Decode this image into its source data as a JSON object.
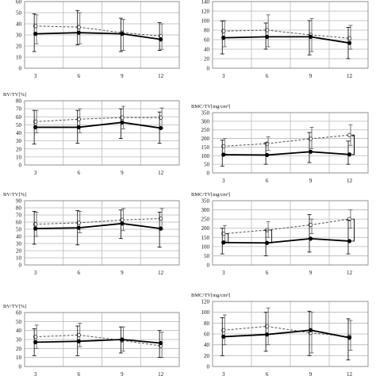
{
  "chart_data": [
    {
      "type": "line",
      "ylabel": "",
      "ylim": [
        0,
        60
      ],
      "yticks": [
        0,
        10,
        20,
        30,
        40,
        50,
        60
      ],
      "x": [
        3,
        6,
        9,
        12
      ],
      "series": [
        {
          "style": "dashed",
          "values": [
            38,
            37,
            32,
            29
          ],
          "err": [
            [
              22,
              48
            ],
            [
              22,
              50
            ],
            [
              16,
              44
            ],
            [
              17,
              40
            ]
          ]
        },
        {
          "style": "solid",
          "values": [
            31,
            32,
            31,
            26
          ],
          "err": [
            [
              15,
              49
            ],
            [
              21,
              52
            ],
            [
              15,
              45
            ],
            [
              16,
              41
            ]
          ]
        }
      ]
    },
    {
      "type": "line",
      "ylabel": "",
      "ylim": [
        0,
        140
      ],
      "yticks": [
        0,
        20,
        40,
        60,
        80,
        100,
        120,
        140
      ],
      "x": [
        3,
        6,
        9,
        12
      ],
      "series": [
        {
          "style": "dashed",
          "values": [
            78,
            80,
            70,
            63
          ],
          "err": [
            [
              45,
              100
            ],
            [
              45,
              112
            ],
            [
              35,
              104
            ],
            [
              40,
              90
            ]
          ]
        },
        {
          "style": "solid",
          "values": [
            64,
            66,
            66,
            53
          ],
          "err": [
            [
              30,
              99
            ],
            [
              40,
              95
            ],
            [
              28,
              100
            ],
            [
              20,
              86
            ]
          ]
        }
      ]
    },
    {
      "type": "line",
      "ylabel": "BV/TV[%]",
      "ylim": [
        0,
        80
      ],
      "yticks": [
        0,
        10,
        20,
        30,
        40,
        50,
        60,
        70,
        80
      ],
      "x": [
        3,
        6,
        9,
        12
      ],
      "series": [
        {
          "style": "dashed",
          "values": [
            54,
            57,
            59,
            59
          ],
          "err": [
            [
              40,
              68
            ],
            [
              40,
              70
            ],
            [
              45,
              73
            ],
            [
              46,
              71
            ]
          ]
        },
        {
          "style": "solid",
          "values": [
            47,
            47,
            53,
            46
          ],
          "err": [
            [
              26,
              68
            ],
            [
              27,
              68
            ],
            [
              33,
              70
            ],
            [
              27,
              66
            ]
          ]
        }
      ]
    },
    {
      "type": "line",
      "ylabel": "BMC/TV[mg/cm³]",
      "ylim": [
        0,
        350
      ],
      "yticks": [
        0,
        50,
        100,
        150,
        200,
        250,
        300,
        350
      ],
      "x": [
        3,
        6,
        9,
        12
      ],
      "series": [
        {
          "style": "dashed",
          "values": [
            155,
            170,
            198,
            220
          ],
          "err": [
            [
              110,
              200
            ],
            [
              130,
              210
            ],
            [
              140,
              265
            ],
            [
              160,
              280
            ]
          ]
        },
        {
          "style": "solid",
          "values": [
            106,
            104,
            123,
            107
          ],
          "err": [
            [
              40,
              190
            ],
            [
              50,
              175
            ],
            [
              60,
              235
            ],
            [
              50,
              185
            ]
          ]
        }
      ],
      "bracket_at": [
        9.9,
        12
      ]
    },
    {
      "type": "line",
      "ylabel": "BV/TV[%]",
      "ylim": [
        0,
        90
      ],
      "yticks": [
        0,
        10,
        20,
        30,
        40,
        50,
        60,
        70,
        80,
        90
      ],
      "x": [
        3,
        6,
        9,
        12
      ],
      "series": [
        {
          "style": "dashed",
          "values": [
            57,
            59,
            63,
            65
          ],
          "err": [
            [
              40,
              74
            ],
            [
              45,
              75
            ],
            [
              48,
              79
            ],
            [
              50,
              79
            ]
          ]
        },
        {
          "style": "solid",
          "values": [
            51,
            52,
            58,
            51
          ],
          "err": [
            [
              29,
              75
            ],
            [
              28,
              76
            ],
            [
              37,
              77
            ],
            [
              25,
              74
            ]
          ]
        }
      ]
    },
    {
      "type": "line",
      "ylabel": "BMC/TV[mg/cm³]",
      "ylim": [
        0,
        350
      ],
      "yticks": [
        0,
        50,
        100,
        150,
        200,
        250,
        300,
        350
      ],
      "x": [
        3,
        6,
        9,
        12
      ],
      "series": [
        {
          "style": "dashed",
          "values": [
            170,
            190,
            218,
            250
          ],
          "err": [
            [
              130,
              215
            ],
            [
              150,
              235
            ],
            [
              170,
              250
            ],
            [
              200,
              300
            ]
          ]
        },
        {
          "style": "solid",
          "values": [
            122,
            120,
            143,
            130
          ],
          "err": [
            [
              60,
              200
            ],
            [
              50,
              190
            ],
            [
              70,
              275
            ],
            [
              60,
              245
            ]
          ]
        }
      ],
      "bracket_at": [
        3,
        6,
        12
      ]
    },
    {
      "type": "line",
      "ylabel": "BV/TV[%]",
      "ylim": [
        0,
        60
      ],
      "yticks": [
        0,
        10,
        20,
        30,
        40,
        50,
        60
      ],
      "x": [
        3,
        6,
        9,
        12
      ],
      "series": [
        {
          "style": "dashed",
          "values": [
            33,
            35,
            29,
            23
          ],
          "err": [
            [
              20,
              46
            ],
            [
              22,
              48
            ],
            [
              17,
              44
            ],
            [
              10,
              38
            ]
          ]
        },
        {
          "style": "solid",
          "values": [
            27,
            28,
            30,
            26
          ],
          "err": [
            [
              12,
              42
            ],
            [
              12,
              45
            ],
            [
              15,
              44
            ],
            [
              10,
              40
            ]
          ]
        }
      ]
    },
    {
      "type": "line",
      "ylabel": "BMC/TV[mg/cm³]",
      "ylim": [
        0,
        120
      ],
      "yticks": [
        0,
        20,
        40,
        60,
        80,
        100,
        120
      ],
      "x": [
        3,
        6,
        9,
        12
      ],
      "series": [
        {
          "style": "dashed",
          "values": [
            67,
            74,
            62,
            55
          ],
          "err": [
            [
              40,
              95
            ],
            [
              40,
              108
            ],
            [
              25,
              100
            ],
            [
              30,
              85
            ]
          ]
        },
        {
          "style": "solid",
          "values": [
            55,
            59,
            67,
            53
          ],
          "err": [
            [
              20,
              90
            ],
            [
              28,
              100
            ],
            [
              20,
              102
            ],
            [
              12,
              88
            ]
          ]
        }
      ]
    }
  ]
}
